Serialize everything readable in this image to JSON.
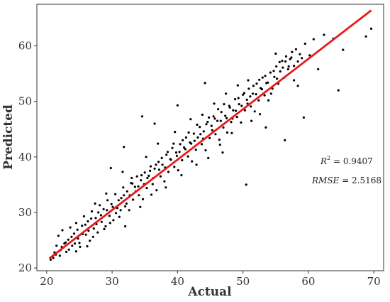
{
  "chart_data": {
    "type": "scatter",
    "xlabel": "Actual",
    "ylabel": "Predicted",
    "xlim": [
      18.5,
      71.5
    ],
    "ylim": [
      19.5,
      67.5
    ],
    "x_ticks": [
      20,
      30,
      40,
      50,
      60,
      70
    ],
    "y_ticks": [
      20,
      30,
      40,
      50,
      60
    ],
    "grid": false,
    "colors": {
      "points": "#000000",
      "fit_line": "#e8191a"
    },
    "fit_line": {
      "x": [
        20.5,
        69.5
      ],
      "y": [
        21.8,
        66.3
      ]
    },
    "points": [
      [
        20.6,
        21.5
      ],
      [
        21.2,
        22.8
      ],
      [
        21.5,
        24.0
      ],
      [
        21.8,
        25.8
      ],
      [
        22.1,
        23.2
      ],
      [
        22.4,
        26.8
      ],
      [
        22.7,
        24.4
      ],
      [
        23.0,
        22.9
      ],
      [
        23.3,
        25.1
      ],
      [
        23.6,
        27.3
      ],
      [
        23.9,
        24.0
      ],
      [
        24.2,
        26.2
      ],
      [
        24.5,
        28.1
      ],
      [
        24.8,
        25.3
      ],
      [
        25.1,
        23.8
      ],
      [
        25.4,
        27.6
      ],
      [
        25.7,
        29.3
      ],
      [
        26.0,
        26.0
      ],
      [
        26.3,
        28.4
      ],
      [
        26.6,
        24.9
      ],
      [
        26.9,
        30.2
      ],
      [
        27.2,
        27.1
      ],
      [
        27.5,
        29.0
      ],
      [
        27.8,
        26.4
      ],
      [
        28.1,
        31.3
      ],
      [
        28.4,
        28.3
      ],
      [
        28.7,
        30.6
      ],
      [
        29.0,
        27.5
      ],
      [
        29.3,
        32.2
      ],
      [
        29.6,
        29.4
      ],
      [
        29.9,
        31.5
      ],
      [
        30.2,
        28.6
      ],
      [
        30.5,
        33.3
      ],
      [
        30.8,
        30.8
      ],
      [
        31.1,
        29.2
      ],
      [
        31.4,
        32.6
      ],
      [
        31.7,
        34.5
      ],
      [
        32.0,
        31.1
      ],
      [
        32.3,
        33.8
      ],
      [
        32.6,
        30.4
      ],
      [
        32.9,
        35.3
      ],
      [
        33.2,
        32.3
      ],
      [
        33.5,
        34.6
      ],
      [
        33.8,
        36.5
      ],
      [
        34.1,
        33.1
      ],
      [
        34.4,
        35.8
      ],
      [
        34.7,
        32.4
      ],
      [
        35.0,
        37.2
      ],
      [
        35.3,
        34.4
      ],
      [
        35.6,
        36.6
      ],
      [
        35.9,
        38.3
      ],
      [
        36.2,
        35.1
      ],
      [
        36.5,
        37.9
      ],
      [
        36.8,
        34.0
      ],
      [
        37.1,
        39.1
      ],
      [
        37.4,
        36.5
      ],
      [
        37.7,
        38.6
      ],
      [
        38.0,
        35.6
      ],
      [
        38.3,
        40.4
      ],
      [
        38.6,
        37.3
      ],
      [
        38.9,
        39.6
      ],
      [
        39.2,
        41.6
      ],
      [
        39.5,
        38.2
      ],
      [
        39.8,
        40.8
      ],
      [
        40.1,
        37.6
      ],
      [
        40.4,
        42.3
      ],
      [
        40.7,
        39.4
      ],
      [
        41.0,
        41.7
      ],
      [
        41.3,
        43.5
      ],
      [
        41.6,
        40.1
      ],
      [
        41.9,
        42.6
      ],
      [
        42.2,
        39.2
      ],
      [
        42.5,
        44.2
      ],
      [
        42.8,
        41.3
      ],
      [
        43.1,
        43.5
      ],
      [
        43.4,
        45.4
      ],
      [
        43.7,
        42.3
      ],
      [
        44.0,
        44.6
      ],
      [
        44.3,
        41.2
      ],
      [
        44.6,
        46.3
      ],
      [
        44.9,
        43.4
      ],
      [
        45.2,
        45.6
      ],
      [
        45.5,
        47.3
      ],
      [
        45.8,
        44.1
      ],
      [
        46.1,
        46.5
      ],
      [
        46.4,
        43.1
      ],
      [
        46.7,
        48.1
      ],
      [
        47.0,
        45.3
      ],
      [
        47.3,
        47.4
      ],
      [
        47.6,
        44.4
      ],
      [
        47.9,
        49.2
      ],
      [
        48.2,
        46.3
      ],
      [
        48.5,
        48.4
      ],
      [
        48.8,
        50.4
      ],
      [
        49.1,
        47.2
      ],
      [
        49.4,
        49.5
      ],
      [
        49.7,
        46.2
      ],
      [
        50.0,
        51.2
      ],
      [
        50.3,
        48.4
      ],
      [
        50.6,
        50.3
      ],
      [
        50.9,
        52.3
      ],
      [
        51.2,
        49.1
      ],
      [
        51.5,
        51.4
      ],
      [
        51.8,
        48.2
      ],
      [
        52.1,
        53.2
      ],
      [
        52.4,
        50.2
      ],
      [
        52.7,
        52.4
      ],
      [
        53.0,
        54.3
      ],
      [
        53.3,
        51.1
      ],
      [
        53.6,
        53.3
      ],
      [
        53.9,
        50.2
      ],
      [
        54.2,
        55.2
      ],
      [
        54.5,
        52.3
      ],
      [
        54.8,
        54.4
      ],
      [
        55.1,
        56.3
      ],
      [
        55.4,
        53.2
      ],
      [
        55.7,
        55.4
      ],
      [
        56.0,
        57.3
      ],
      [
        56.3,
        54.3
      ],
      [
        56.6,
        58.1
      ],
      [
        56.9,
        55.8
      ],
      [
        57.2,
        57.6
      ],
      [
        57.5,
        58.9
      ],
      [
        57.8,
        56.4
      ],
      [
        58.1,
        59.4
      ],
      [
        58.4,
        57.2
      ],
      [
        58.7,
        58.5
      ],
      [
        59.0,
        57.8
      ],
      [
        59.5,
        60.4
      ],
      [
        60.2,
        58.3
      ],
      [
        60.8,
        61.2
      ],
      [
        61.5,
        55.8
      ],
      [
        62.4,
        62.0
      ],
      [
        63.8,
        61.3
      ],
      [
        64.6,
        52.0
      ],
      [
        65.3,
        59.3
      ],
      [
        68.8,
        61.7
      ],
      [
        69.6,
        63.1
      ],
      [
        21.0,
        21.8
      ],
      [
        21.4,
        22.4
      ],
      [
        22.0,
        22.2
      ],
      [
        22.3,
        23.8
      ],
      [
        22.9,
        24.6
      ],
      [
        23.4,
        23.3
      ],
      [
        23.8,
        25.6
      ],
      [
        24.3,
        24.4
      ],
      [
        24.7,
        26.9
      ],
      [
        25.0,
        24.5
      ],
      [
        25.5,
        26.1
      ],
      [
        25.9,
        27.8
      ],
      [
        26.4,
        26.7
      ],
      [
        26.8,
        28.9
      ],
      [
        27.1,
        25.6
      ],
      [
        27.6,
        27.9
      ],
      [
        27.9,
        30.0
      ],
      [
        28.3,
        29.5
      ],
      [
        28.8,
        27.0
      ],
      [
        29.2,
        30.4
      ],
      [
        29.7,
        28.1
      ],
      [
        30.1,
        31.0
      ],
      [
        30.6,
        29.9
      ],
      [
        31.0,
        32.2
      ],
      [
        31.3,
        30.4
      ],
      [
        31.8,
        33.1
      ],
      [
        32.2,
        31.6
      ],
      [
        32.7,
        33.1
      ],
      [
        33.1,
        35.2
      ],
      [
        33.6,
        33.8
      ],
      [
        34.0,
        34.7
      ],
      [
        34.5,
        36.7
      ],
      [
        34.9,
        35.1
      ],
      [
        35.4,
        36.2
      ],
      [
        35.8,
        37.5
      ],
      [
        36.3,
        36.2
      ],
      [
        36.7,
        38.6
      ],
      [
        37.2,
        37.7
      ],
      [
        37.6,
        39.8
      ],
      [
        38.1,
        38.1
      ],
      [
        38.5,
        40.9
      ],
      [
        39.0,
        39.5
      ],
      [
        39.4,
        42.4
      ],
      [
        39.9,
        40.2
      ],
      [
        40.3,
        40.9
      ],
      [
        40.8,
        43.0
      ],
      [
        41.2,
        41.4
      ],
      [
        41.7,
        44.4
      ],
      [
        42.1,
        42.4
      ],
      [
        42.6,
        42.9
      ],
      [
        43.0,
        45.8
      ],
      [
        43.5,
        44.1
      ],
      [
        43.9,
        43.3
      ],
      [
        44.4,
        45.9
      ],
      [
        44.8,
        47.1
      ],
      [
        45.3,
        44.8
      ],
      [
        45.7,
        46.9
      ],
      [
        46.2,
        48.6
      ],
      [
        46.6,
        46.5
      ],
      [
        47.1,
        49.5
      ],
      [
        47.5,
        47.0
      ],
      [
        48.0,
        48.9
      ],
      [
        48.4,
        46.9
      ],
      [
        48.9,
        48.3
      ],
      [
        49.3,
        50.6
      ],
      [
        49.8,
        49.2
      ],
      [
        50.2,
        51.5
      ],
      [
        50.7,
        49.6
      ],
      [
        51.1,
        50.9
      ],
      [
        51.6,
        52.8
      ],
      [
        52.0,
        51.3
      ],
      [
        52.5,
        53.9
      ],
      [
        52.9,
        52.2
      ],
      [
        53.4,
        54.6
      ],
      [
        53.8,
        53.4
      ],
      [
        54.3,
        51.4
      ],
      [
        54.7,
        55.5
      ],
      [
        55.2,
        54.1
      ],
      [
        55.6,
        57.1
      ],
      [
        56.1,
        56.1
      ],
      [
        56.5,
        57.2
      ],
      [
        57.0,
        56.3
      ],
      [
        57.4,
        57.9
      ],
      [
        24.5,
        23.0
      ],
      [
        26.2,
        23.9
      ],
      [
        27.4,
        31.6
      ],
      [
        29.1,
        33.4
      ],
      [
        31.6,
        37.3
      ],
      [
        32.0,
        27.5
      ],
      [
        33.0,
        36.2
      ],
      [
        34.3,
        31.0
      ],
      [
        35.2,
        40.0
      ],
      [
        36.0,
        33.2
      ],
      [
        37.0,
        42.4
      ],
      [
        38.2,
        34.5
      ],
      [
        39.6,
        44.5
      ],
      [
        40.6,
        36.7
      ],
      [
        42.0,
        46.8
      ],
      [
        42.9,
        38.6
      ],
      [
        43.8,
        47.6
      ],
      [
        44.7,
        39.8
      ],
      [
        45.6,
        49.6
      ],
      [
        46.5,
        42.2
      ],
      [
        47.4,
        51.4
      ],
      [
        48.3,
        44.3
      ],
      [
        49.2,
        52.9
      ],
      [
        50.5,
        35.0
      ],
      [
        51.3,
        46.5
      ],
      [
        52.6,
        47.7
      ],
      [
        53.5,
        45.3
      ],
      [
        55.0,
        58.6
      ],
      [
        56.4,
        43.0
      ],
      [
        57.8,
        53.8
      ],
      [
        59.3,
        47.1
      ],
      [
        44.2,
        53.3
      ],
      [
        40.0,
        49.3
      ],
      [
        36.5,
        46.0
      ],
      [
        34.6,
        47.3
      ],
      [
        31.8,
        41.8
      ],
      [
        29.8,
        38.0
      ],
      [
        58.4,
        52.8
      ],
      [
        50.8,
        53.8
      ],
      [
        46.9,
        40.8
      ]
    ],
    "annotations": {
      "r2": {
        "lhs": "R",
        "sup": "2",
        "rhs": " = 0.9407"
      },
      "rmse": {
        "lhs": "RMSE",
        "rhs": " = 2.5168"
      }
    }
  }
}
